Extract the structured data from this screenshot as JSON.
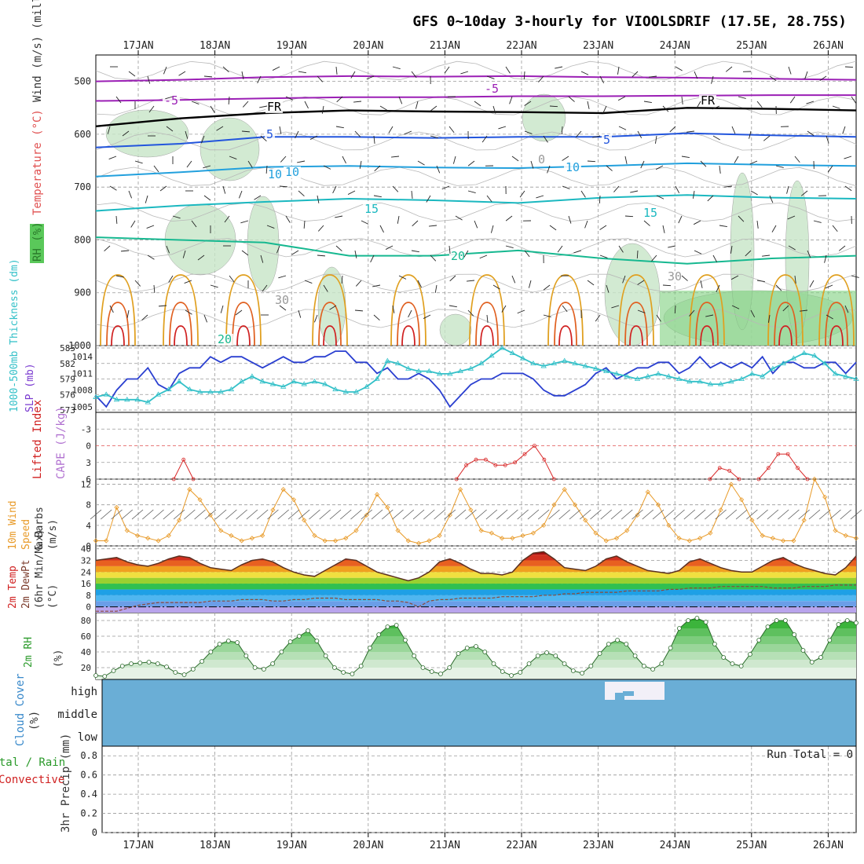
{
  "title": "GFS 0~10day 3-hourly for VIOOLSDRIF (17.5E, 28.75S)",
  "colors": {
    "temperature_contours": {
      "-5": "#9b1fb5",
      "FR": "#000000",
      "5": "#2255dd",
      "10": "#22a0dd",
      "15": "#1bb8c0",
      "20": "#16b890",
      "25": "#e0a020",
      "30": "#e06020",
      "35": "#d02020"
    },
    "rh_fill": "#c8e6c8",
    "rh_fill_dark": "#5ac85a",
    "slp": "#2a3fd0",
    "thickness": "#33c0c8",
    "lifted_index": "#d82828",
    "wind_speed": "#e89a28",
    "cloud": "#6aaed6",
    "cloud_high": "#f2f0f8"
  },
  "chart_data": [
    {
      "type": "contour",
      "id": "upper-air",
      "x": [
        "17JAN",
        "18JAN",
        "19JAN",
        "20JAN",
        "21JAN",
        "22JAN",
        "23JAN",
        "24JAN",
        "25JAN",
        "26JAN"
      ],
      "ylabel_parts": [
        {
          "text": "RH (%)",
          "color": "#2a7a2a"
        },
        {
          "text": "Temperature (°C)",
          "color": "#e05050"
        },
        {
          "text": "Wind (m/s)",
          "color": "#333333"
        },
        {
          "text": "(millibars)",
          "color": "#333333"
        }
      ],
      "yticks": [
        "500",
        "600",
        "700",
        "800",
        "900",
        "1000"
      ],
      "ylim": [
        1000,
        450
      ],
      "contour_labels": [
        "-5",
        "-5",
        "FR",
        "FR",
        "5",
        "5",
        "10",
        "10",
        "10",
        "15",
        "15",
        "20",
        "20",
        "30",
        "30",
        "0"
      ],
      "series": [
        {
          "name": "-5",
          "level": 530,
          "values": [
            537,
            535,
            532,
            530,
            530,
            528,
            528,
            527,
            526,
            526
          ]
        },
        {
          "name": "FR",
          "level": 565,
          "values": [
            585,
            570,
            560,
            555,
            557,
            558,
            560,
            550,
            552,
            555
          ]
        },
        {
          "name": "5",
          "level": 610,
          "values": [
            625,
            618,
            605,
            605,
            607,
            605,
            605,
            598,
            602,
            605
          ]
        },
        {
          "name": "10",
          "level": 660,
          "values": [
            680,
            672,
            662,
            660,
            663,
            664,
            660,
            655,
            658,
            660
          ]
        },
        {
          "name": "15",
          "level": 720,
          "values": [
            745,
            735,
            728,
            722,
            725,
            730,
            720,
            715,
            720,
            722
          ]
        },
        {
          "name": "20",
          "level": 800,
          "values": [
            795,
            800,
            805,
            830,
            830,
            820,
            835,
            845,
            835,
            830
          ]
        }
      ]
    },
    {
      "type": "line",
      "id": "slp-thickness",
      "x_range": [
        "16JAN12Z",
        "26JAN03Z"
      ],
      "ylabel_left": "1000-500mb Thickness (dm)",
      "ylabel_right": "SLP (mb)",
      "yticks_left": [
        "585",
        "582",
        "579",
        "576",
        "573"
      ],
      "yticks_right": [
        "1014",
        "1011",
        "1008",
        "1005"
      ],
      "ylim_left": [
        573,
        585
      ],
      "ylim_right": [
        1004,
        1016
      ],
      "series": [
        {
          "name": "SLP (mb)",
          "values": [
            1007,
            1005,
            1008,
            1010,
            1010,
            1012,
            1009,
            1008,
            1011,
            1012,
            1012,
            1014,
            1013,
            1014,
            1014,
            1013,
            1012,
            1013,
            1014,
            1013,
            1013,
            1014,
            1014,
            1015,
            1015,
            1013,
            1013,
            1011,
            1012,
            1010,
            1010,
            1011,
            1010,
            1008,
            1005,
            1007,
            1009,
            1010,
            1010,
            1011,
            1011,
            1011,
            1010,
            1008,
            1007,
            1007,
            1008,
            1009,
            1011,
            1012,
            1010,
            1011,
            1012,
            1012,
            1013,
            1013,
            1011,
            1012,
            1014,
            1012,
            1013,
            1012,
            1013,
            1012,
            1014,
            1011,
            1013,
            1013,
            1012,
            1012,
            1013,
            1013,
            1011,
            1013
          ]
        },
        {
          "name": "1000-500mb Thickness (dm)",
          "values": [
            575.5,
            576,
            575,
            575,
            575,
            574.5,
            576,
            577,
            578.5,
            577,
            576.5,
            576.5,
            576.5,
            577,
            578.5,
            579.5,
            578.5,
            578,
            577.5,
            578.5,
            578,
            578.5,
            578,
            577,
            576.5,
            576.5,
            577.5,
            579,
            582.5,
            582,
            581,
            580.5,
            580.5,
            580,
            580,
            580.5,
            581,
            582,
            583.5,
            585,
            584,
            583,
            582,
            581.5,
            582,
            582.5,
            582,
            581.5,
            581,
            580.5,
            580,
            579.5,
            579,
            579.5,
            580,
            579.5,
            579,
            578.5,
            578.5,
            578,
            578,
            578.5,
            579,
            580,
            579.5,
            581,
            582,
            583,
            584,
            583.5,
            582,
            580,
            579.5,
            579
          ]
        }
      ]
    },
    {
      "type": "line",
      "id": "lifted-index-cape",
      "ylabel_left": "Lifted Index",
      "ylabel_right": "CAPE (J/kg)",
      "yticks": [
        "-3",
        "0",
        "3",
        "6"
      ],
      "ylim": [
        -6,
        6
      ],
      "series": [
        {
          "name": "Lifted Index",
          "segments": [
            {
              "start_index": 8,
              "values": [
                6,
                2.5,
                6
              ]
            },
            {
              "start_index": 37,
              "values": [
                6,
                3.5,
                2.5,
                2.5,
                3.5,
                3.5,
                3,
                1.5,
                0,
                2.5,
                6
              ]
            },
            {
              "start_index": 63,
              "values": [
                6,
                4,
                4.5,
                6
              ]
            },
            {
              "start_index": 68,
              "values": [
                6,
                4,
                1.5,
                1.5,
                4,
                6
              ]
            }
          ]
        }
      ]
    },
    {
      "type": "line",
      "id": "wind-10m",
      "ylabel_parts": [
        {
          "text": "10m Wind",
          "color": "#e89a28"
        },
        {
          "text": "Speed",
          "color": "#e89a28"
        },
        {
          "text": "& Barbs",
          "color": "#333333"
        },
        {
          "text": "(m/s)",
          "color": "#333333"
        }
      ],
      "yticks": [
        "12",
        "8",
        "4",
        "0"
      ],
      "ylim": [
        0,
        13
      ],
      "series": [
        {
          "name": "10m Wind Speed",
          "values": [
            1,
            1,
            7.5,
            3,
            2,
            1.5,
            1,
            2,
            5,
            11,
            9,
            6,
            3,
            2,
            1,
            1.5,
            2,
            7,
            11,
            9,
            5,
            2,
            1,
            1,
            1.5,
            3,
            6,
            10,
            7.5,
            3,
            1,
            0.5,
            1,
            2,
            6,
            11,
            7,
            3,
            2.5,
            1.5,
            1.5,
            2,
            2.5,
            4,
            8,
            11,
            8,
            5,
            2.5,
            1,
            1.5,
            3,
            6,
            10.5,
            8,
            4,
            1.5,
            1,
            1.5,
            2.5,
            7,
            12,
            9,
            5,
            2,
            1.5,
            1,
            1,
            5,
            13,
            9.5,
            3,
            2,
            1.5
          ]
        }
      ]
    },
    {
      "type": "area",
      "id": "temp-2m",
      "ylabel_parts": [
        {
          "text": "2m Temp",
          "color": "#d02020"
        },
        {
          "text": "2m DewPt",
          "color": "#7a3a2a"
        },
        {
          "text": "(6hr Min/Max)",
          "color": "#333333"
        },
        {
          "text": "(°C)",
          "color": "#333333"
        }
      ],
      "yticks": [
        "40",
        "32",
        "24",
        "16",
        "8",
        "0"
      ],
      "ylim": [
        -4,
        42
      ],
      "series": [
        {
          "name": "2m Temp",
          "values": [
            32,
            33,
            34,
            31,
            29,
            28,
            30,
            33,
            35,
            34,
            30,
            27,
            26,
            25,
            29,
            32,
            33,
            31,
            27,
            24,
            22,
            21,
            25,
            29,
            33,
            32,
            28,
            24,
            22,
            20,
            18,
            20,
            24,
            31,
            33,
            30,
            26,
            23,
            23,
            22,
            24,
            32,
            37,
            38,
            33,
            27,
            26,
            25,
            28,
            33,
            35,
            31,
            28,
            25,
            24,
            23,
            25,
            31,
            33,
            30,
            27,
            25,
            24,
            24,
            28,
            32,
            34,
            30,
            27,
            25,
            23,
            22,
            27,
            35
          ]
        },
        {
          "name": "2m DewPt",
          "values": [
            -3,
            -3,
            -3,
            -1,
            1,
            2,
            3,
            3,
            3,
            3,
            3,
            4,
            4,
            4,
            5,
            5,
            5,
            4,
            4,
            5,
            5,
            6,
            6,
            6,
            5,
            5,
            5,
            5,
            4,
            4,
            3,
            0,
            4,
            5,
            5,
            6,
            6,
            6,
            6,
            7,
            7,
            7,
            7,
            8,
            8,
            9,
            9,
            10,
            10,
            10,
            10,
            11,
            11,
            11,
            11,
            12,
            12,
            13,
            13,
            13,
            14,
            14,
            14,
            14,
            14,
            13,
            13,
            13,
            14,
            14,
            14,
            15,
            15,
            15
          ]
        }
      ]
    },
    {
      "type": "area",
      "id": "rh-2m",
      "ylabel_parts": [
        {
          "text": "2m RH",
          "color": "#2a9a2a"
        },
        {
          "text": "(%)",
          "color": "#333333"
        }
      ],
      "yticks": [
        "80",
        "60",
        "40",
        "20"
      ],
      "ylim": [
        5,
        90
      ],
      "series": [
        {
          "name": "2m RH",
          "values": [
            10,
            9,
            16,
            22,
            25,
            26,
            27,
            25,
            21,
            14,
            11,
            18,
            28,
            40,
            50,
            54,
            52,
            35,
            20,
            18,
            25,
            40,
            53,
            60,
            67,
            54,
            35,
            20,
            14,
            12,
            22,
            45,
            62,
            72,
            74,
            55,
            35,
            20,
            15,
            12,
            20,
            38,
            45,
            47,
            40,
            25,
            15,
            10,
            14,
            25,
            35,
            39,
            35,
            25,
            16,
            13,
            22,
            38,
            50,
            55,
            50,
            35,
            22,
            18,
            25,
            45,
            70,
            80,
            83,
            78,
            50,
            33,
            25,
            22,
            37,
            55,
            72,
            80,
            80,
            62,
            42,
            27,
            33,
            55,
            75,
            80,
            77
          ]
        }
      ]
    },
    {
      "type": "heatmap",
      "id": "cloud-cover",
      "ylabel_parts": [
        {
          "text": "Cloud Cover",
          "color": "#3a8acb"
        },
        {
          "text": "(%)",
          "color": "#333333"
        }
      ],
      "rows": [
        "high",
        "middle",
        "low"
      ],
      "series": [
        {
          "name": "high",
          "values": [
            0,
            0,
            0,
            0,
            0,
            0,
            0,
            0,
            0,
            0,
            0,
            0,
            0,
            0,
            0,
            0,
            0,
            0,
            0,
            0,
            0,
            0,
            0,
            0,
            0,
            0,
            0,
            0,
            0,
            0,
            0,
            0,
            0,
            0,
            0,
            0,
            0,
            0,
            0,
            0,
            0,
            0,
            0,
            0,
            0,
            0,
            0,
            0,
            0,
            0,
            0,
            0,
            0,
            0,
            0,
            0,
            0,
            0,
            0,
            0,
            0,
            0,
            0,
            0,
            0,
            0,
            0,
            0,
            0,
            0,
            0,
            0,
            0,
            0
          ]
        }
      ],
      "note_high_clear_from": "23JAN00Z",
      "note_high_clear_to": "23JAN18Z"
    },
    {
      "type": "bar",
      "id": "precip-3hr",
      "ylabel_parts": [
        {
          "text": "Total / Rain",
          "color": "#2a9a2a"
        },
        {
          "text": "Convective",
          "color": "#d02020"
        },
        {
          "text": "3hr Precip (mm)",
          "color": "#333333"
        }
      ],
      "yticks": [
        "0.8",
        "0.6",
        "0.4",
        "0.2",
        "0"
      ],
      "ylim": [
        0,
        0.9
      ],
      "run_total_label": "Run Total = 0",
      "values": []
    }
  ],
  "x_axis": {
    "days": [
      "17JAN",
      "18JAN",
      "19JAN",
      "20JAN",
      "21JAN",
      "22JAN",
      "23JAN",
      "24JAN",
      "25JAN",
      "26JAN"
    ]
  }
}
